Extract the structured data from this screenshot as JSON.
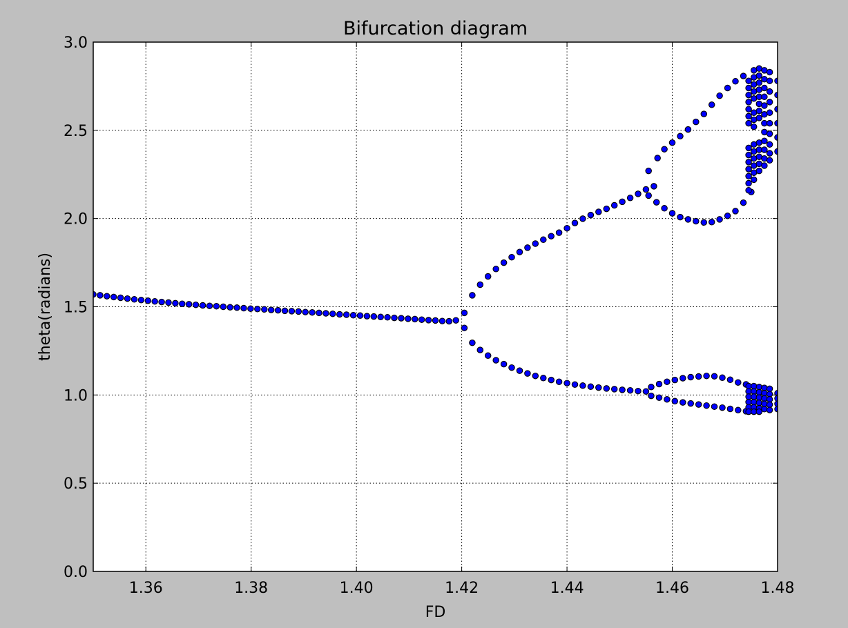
{
  "chart_data": {
    "type": "scatter",
    "title": "Bifurcation diagram",
    "xlabel": "FD",
    "ylabel": "theta(radians)",
    "xlim": [
      1.35,
      1.48
    ],
    "ylim": [
      0.0,
      3.0
    ],
    "xticks": [
      1.36,
      1.38,
      1.4,
      1.42,
      1.44,
      1.46,
      1.48
    ],
    "xtick_labels": [
      "1.36",
      "1.38",
      "1.40",
      "1.42",
      "1.44",
      "1.46",
      "1.48"
    ],
    "yticks": [
      0.0,
      0.5,
      1.0,
      1.5,
      2.0,
      2.5,
      3.0
    ],
    "ytick_labels": [
      "0.0",
      "0.5",
      "1.0",
      "1.5",
      "2.0",
      "2.5",
      "3.0"
    ],
    "grid": true,
    "grid_style": "dotted",
    "marker_color": "#0000ff",
    "marker_edge_color": "#000000",
    "background_color": "#bfbfbf",
    "plot_background_color": "#ffffff",
    "points": [
      [
        1.35,
        1.57
      ],
      [
        1.3513,
        1.565
      ],
      [
        1.3526,
        1.56
      ],
      [
        1.3539,
        1.555
      ],
      [
        1.3552,
        1.551
      ],
      [
        1.3565,
        1.546
      ],
      [
        1.3578,
        1.542
      ],
      [
        1.3591,
        1.538
      ],
      [
        1.3604,
        1.534
      ],
      [
        1.3617,
        1.53
      ],
      [
        1.363,
        1.527
      ],
      [
        1.3643,
        1.524
      ],
      [
        1.3656,
        1.52
      ],
      [
        1.3669,
        1.517
      ],
      [
        1.3682,
        1.514
      ],
      [
        1.3695,
        1.511
      ],
      [
        1.3708,
        1.508
      ],
      [
        1.3721,
        1.505
      ],
      [
        1.3734,
        1.503
      ],
      [
        1.3747,
        1.5
      ],
      [
        1.376,
        1.497
      ],
      [
        1.3773,
        1.495
      ],
      [
        1.3786,
        1.492
      ],
      [
        1.3799,
        1.489
      ],
      [
        1.3812,
        1.487
      ],
      [
        1.3825,
        1.485
      ],
      [
        1.3838,
        1.482
      ],
      [
        1.3851,
        1.48
      ],
      [
        1.3864,
        1.477
      ],
      [
        1.3877,
        1.475
      ],
      [
        1.389,
        1.473
      ],
      [
        1.3903,
        1.47
      ],
      [
        1.3916,
        1.468
      ],
      [
        1.3929,
        1.465
      ],
      [
        1.3942,
        1.463
      ],
      [
        1.3955,
        1.46
      ],
      [
        1.3968,
        1.457
      ],
      [
        1.3981,
        1.455
      ],
      [
        1.3994,
        1.452
      ],
      [
        1.4007,
        1.45
      ],
      [
        1.402,
        1.447
      ],
      [
        1.4033,
        1.445
      ],
      [
        1.4046,
        1.442
      ],
      [
        1.4059,
        1.44
      ],
      [
        1.4072,
        1.437
      ],
      [
        1.4085,
        1.435
      ],
      [
        1.4098,
        1.432
      ],
      [
        1.4111,
        1.43
      ],
      [
        1.4124,
        1.427
      ],
      [
        1.4137,
        1.424
      ],
      [
        1.415,
        1.422
      ],
      [
        1.4163,
        1.419
      ],
      [
        1.4176,
        1.418
      ],
      [
        1.4189,
        1.423
      ],
      [
        1.4205,
        1.465
      ],
      [
        1.4205,
        1.38
      ],
      [
        1.422,
        1.565
      ],
      [
        1.4235,
        1.625
      ],
      [
        1.425,
        1.672
      ],
      [
        1.4265,
        1.714
      ],
      [
        1.428,
        1.75
      ],
      [
        1.4295,
        1.781
      ],
      [
        1.431,
        1.81
      ],
      [
        1.4325,
        1.835
      ],
      [
        1.434,
        1.858
      ],
      [
        1.4355,
        1.88
      ],
      [
        1.437,
        1.9
      ],
      [
        1.4385,
        1.92
      ],
      [
        1.44,
        1.945
      ],
      [
        1.4415,
        1.975
      ],
      [
        1.443,
        1.999
      ],
      [
        1.4445,
        2.02
      ],
      [
        1.446,
        2.038
      ],
      [
        1.4475,
        2.055
      ],
      [
        1.449,
        2.075
      ],
      [
        1.4505,
        2.095
      ],
      [
        1.452,
        2.117
      ],
      [
        1.4535,
        2.14
      ],
      [
        1.455,
        2.165
      ],
      [
        1.4565,
        2.183
      ],
      [
        1.422,
        1.296
      ],
      [
        1.4235,
        1.255
      ],
      [
        1.425,
        1.223
      ],
      [
        1.4265,
        1.197
      ],
      [
        1.428,
        1.175
      ],
      [
        1.4295,
        1.155
      ],
      [
        1.431,
        1.138
      ],
      [
        1.4325,
        1.122
      ],
      [
        1.434,
        1.108
      ],
      [
        1.4355,
        1.096
      ],
      [
        1.437,
        1.085
      ],
      [
        1.4385,
        1.075
      ],
      [
        1.44,
        1.067
      ],
      [
        1.4415,
        1.059
      ],
      [
        1.443,
        1.053
      ],
      [
        1.4445,
        1.047
      ],
      [
        1.446,
        1.042
      ],
      [
        1.4475,
        1.037
      ],
      [
        1.449,
        1.033
      ],
      [
        1.4505,
        1.029
      ],
      [
        1.452,
        1.026
      ],
      [
        1.4535,
        1.022
      ],
      [
        1.455,
        1.02
      ],
      [
        1.4555,
        2.27
      ],
      [
        1.4572,
        2.343
      ],
      [
        1.4585,
        2.393
      ],
      [
        1.46,
        2.43
      ],
      [
        1.4615,
        2.467
      ],
      [
        1.463,
        2.505
      ],
      [
        1.4645,
        2.548
      ],
      [
        1.466,
        2.593
      ],
      [
        1.4675,
        2.645
      ],
      [
        1.469,
        2.696
      ],
      [
        1.4705,
        2.74
      ],
      [
        1.472,
        2.778
      ],
      [
        1.4735,
        2.808
      ],
      [
        1.4555,
        2.13
      ],
      [
        1.457,
        2.092
      ],
      [
        1.4585,
        2.058
      ],
      [
        1.46,
        2.03
      ],
      [
        1.4615,
        2.008
      ],
      [
        1.463,
        1.995
      ],
      [
        1.4645,
        1.985
      ],
      [
        1.466,
        1.978
      ],
      [
        1.4675,
        1.98
      ],
      [
        1.469,
        1.995
      ],
      [
        1.4705,
        2.015
      ],
      [
        1.472,
        2.042
      ],
      [
        1.4735,
        2.09
      ],
      [
        1.475,
        2.15
      ],
      [
        1.456,
        1.045
      ],
      [
        1.4575,
        1.062
      ],
      [
        1.459,
        1.075
      ],
      [
        1.4605,
        1.085
      ],
      [
        1.462,
        1.095
      ],
      [
        1.4635,
        1.101
      ],
      [
        1.465,
        1.105
      ],
      [
        1.4665,
        1.108
      ],
      [
        1.468,
        1.106
      ],
      [
        1.4695,
        1.098
      ],
      [
        1.471,
        1.086
      ],
      [
        1.4725,
        1.071
      ],
      [
        1.474,
        1.06
      ],
      [
        1.456,
        0.995
      ],
      [
        1.4575,
        0.985
      ],
      [
        1.459,
        0.975
      ],
      [
        1.4605,
        0.965
      ],
      [
        1.462,
        0.958
      ],
      [
        1.4635,
        0.952
      ],
      [
        1.465,
        0.946
      ],
      [
        1.4665,
        0.94
      ],
      [
        1.468,
        0.934
      ],
      [
        1.4695,
        0.928
      ],
      [
        1.471,
        0.921
      ],
      [
        1.4725,
        0.914
      ],
      [
        1.474,
        0.908
      ],
      [
        1.4745,
        2.78
      ],
      [
        1.4745,
        2.74
      ],
      [
        1.4745,
        2.7
      ],
      [
        1.4745,
        2.66
      ],
      [
        1.4745,
        2.62
      ],
      [
        1.4745,
        2.58
      ],
      [
        1.4745,
        2.54
      ],
      [
        1.4745,
        2.4
      ],
      [
        1.4745,
        2.36
      ],
      [
        1.4745,
        2.32
      ],
      [
        1.4745,
        2.28
      ],
      [
        1.4745,
        2.24
      ],
      [
        1.4745,
        2.2
      ],
      [
        1.4745,
        2.16
      ],
      [
        1.4755,
        2.84
      ],
      [
        1.4755,
        2.8
      ],
      [
        1.4755,
        2.76
      ],
      [
        1.4755,
        2.72
      ],
      [
        1.4755,
        2.68
      ],
      [
        1.4755,
        2.6
      ],
      [
        1.4755,
        2.56
      ],
      [
        1.4755,
        2.52
      ],
      [
        1.4755,
        2.42
      ],
      [
        1.4755,
        2.38
      ],
      [
        1.4755,
        2.34
      ],
      [
        1.4755,
        2.3
      ],
      [
        1.4755,
        2.26
      ],
      [
        1.4755,
        2.22
      ],
      [
        1.4765,
        2.85
      ],
      [
        1.4765,
        2.81
      ],
      [
        1.4765,
        2.77
      ],
      [
        1.4765,
        2.73
      ],
      [
        1.4765,
        2.69
      ],
      [
        1.4765,
        2.65
      ],
      [
        1.4765,
        2.61
      ],
      [
        1.4765,
        2.57
      ],
      [
        1.4765,
        2.43
      ],
      [
        1.4765,
        2.39
      ],
      [
        1.4765,
        2.35
      ],
      [
        1.4765,
        2.31
      ],
      [
        1.4765,
        2.27
      ],
      [
        1.4775,
        2.84
      ],
      [
        1.4775,
        2.79
      ],
      [
        1.4775,
        2.74
      ],
      [
        1.4775,
        2.69
      ],
      [
        1.4775,
        2.64
      ],
      [
        1.4775,
        2.59
      ],
      [
        1.4775,
        2.54
      ],
      [
        1.4775,
        2.49
      ],
      [
        1.4775,
        2.44
      ],
      [
        1.4775,
        2.39
      ],
      [
        1.4775,
        2.34
      ],
      [
        1.4775,
        2.3
      ],
      [
        1.4785,
        2.83
      ],
      [
        1.4785,
        2.78
      ],
      [
        1.4785,
        2.72
      ],
      [
        1.4785,
        2.66
      ],
      [
        1.4785,
        2.6
      ],
      [
        1.4785,
        2.54
      ],
      [
        1.4785,
        2.48
      ],
      [
        1.4785,
        2.42
      ],
      [
        1.4785,
        2.37
      ],
      [
        1.4785,
        2.33
      ],
      [
        1.48,
        2.78
      ],
      [
        1.48,
        2.7
      ],
      [
        1.48,
        2.62
      ],
      [
        1.48,
        2.54
      ],
      [
        1.48,
        2.46
      ],
      [
        1.48,
        2.38
      ],
      [
        1.4745,
        1.05
      ],
      [
        1.4745,
        1.02
      ],
      [
        1.4745,
        0.99
      ],
      [
        1.4745,
        0.96
      ],
      [
        1.4745,
        0.93
      ],
      [
        1.4745,
        0.905
      ],
      [
        1.4755,
        1.05
      ],
      [
        1.4755,
        1.02
      ],
      [
        1.4755,
        0.99
      ],
      [
        1.4755,
        0.96
      ],
      [
        1.4755,
        0.93
      ],
      [
        1.4755,
        0.905
      ],
      [
        1.4765,
        1.045
      ],
      [
        1.4765,
        1.015
      ],
      [
        1.4765,
        0.985
      ],
      [
        1.4765,
        0.955
      ],
      [
        1.4765,
        0.925
      ],
      [
        1.4765,
        0.905
      ],
      [
        1.4775,
        1.04
      ],
      [
        1.4775,
        1.01
      ],
      [
        1.4775,
        0.98
      ],
      [
        1.4775,
        0.95
      ],
      [
        1.4775,
        0.92
      ],
      [
        1.4785,
        1.035
      ],
      [
        1.4785,
        1.005
      ],
      [
        1.4785,
        0.975
      ],
      [
        1.4785,
        0.945
      ],
      [
        1.4785,
        0.915
      ],
      [
        1.48,
        1.01
      ],
      [
        1.48,
        0.98
      ],
      [
        1.48,
        0.95
      ],
      [
        1.48,
        0.92
      ]
    ]
  }
}
